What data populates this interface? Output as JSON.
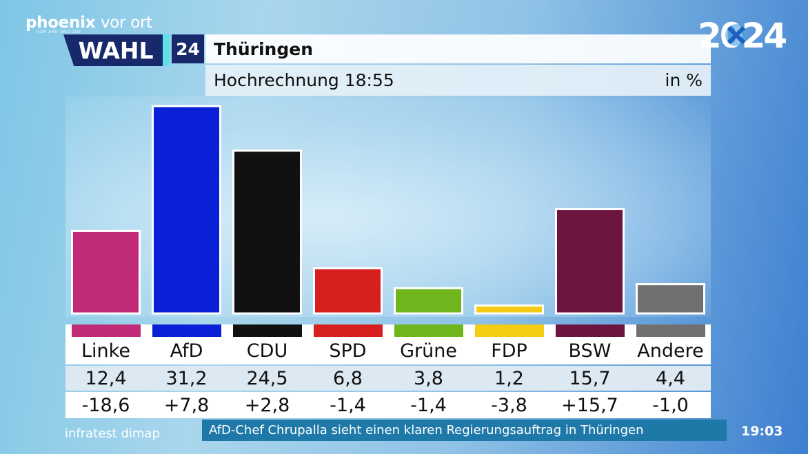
{
  "branding": {
    "channel": "phoenix",
    "channel_suffix": "vor ort",
    "channel_tag": "VON ARD UND ZDF",
    "logo_year": "2024"
  },
  "badge": {
    "wahl": "WAHL",
    "year": "24"
  },
  "header": {
    "title": "Thüringen",
    "subtitle": "Hochrechnung 18:55",
    "unit": "in %"
  },
  "chart_data": {
    "type": "bar",
    "title": "Thüringen",
    "subtitle": "Hochrechnung 18:55",
    "ylabel": "",
    "xlabel": "",
    "unit": "in %",
    "ylim": [
      0,
      31.2
    ],
    "grid": false,
    "categories": [
      "Linke",
      "AfD",
      "CDU",
      "SPD",
      "Grüne",
      "FDP",
      "BSW",
      "Andere"
    ],
    "values": [
      12.4,
      31.2,
      24.5,
      6.8,
      3.8,
      1.2,
      15.7,
      4.4
    ],
    "value_labels": [
      "12,4",
      "31,2",
      "24,5",
      "6,8",
      "3,8",
      "1,2",
      "15,7",
      "4,4"
    ],
    "changes": [
      -18.6,
      7.8,
      2.8,
      -1.4,
      -1.4,
      -3.8,
      15.7,
      -1.0
    ],
    "change_labels": [
      "-18,6",
      "+7,8",
      "+2,8",
      "-1,4",
      "-1,4",
      "-3,8",
      "+15,7",
      "-1,0"
    ],
    "colors": [
      "#c02a77",
      "#0a20d6",
      "#111111",
      "#d81f1f",
      "#6fb51e",
      "#f4cc14",
      "#6c1540",
      "#707070"
    ]
  },
  "footer": {
    "source": "infratest dimap",
    "ticker": "AfD-Chef Chrupalla sieht einen klaren Regierungsauftrag in Thüringen",
    "time": "19:03"
  }
}
